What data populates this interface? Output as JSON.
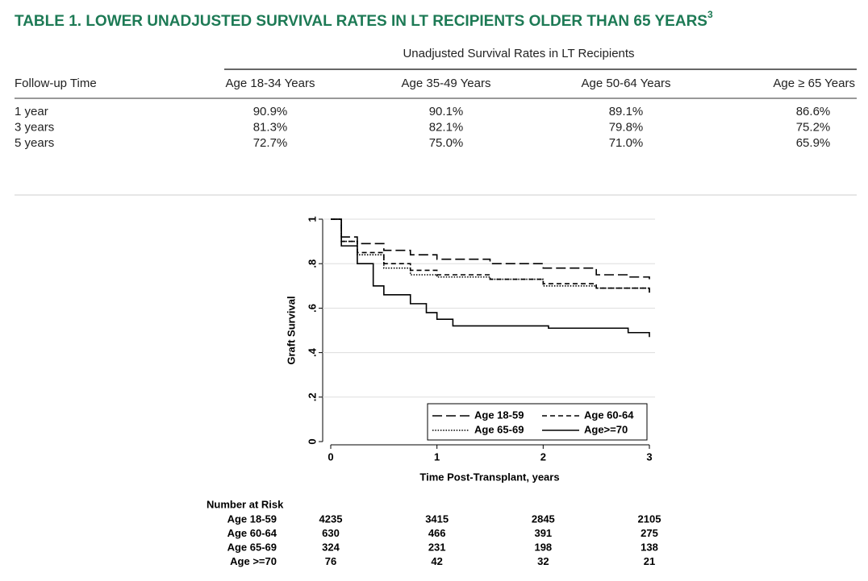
{
  "header": {
    "title": "TABLE 1. LOWER UNADJUSTED SURVIVAL RATES IN LT RECIPIENTS OLDER THAN 65 YEARS",
    "title_superscript": "3",
    "color": "#1d7a55"
  },
  "table": {
    "super_header": "Unadjusted Survival Rates in LT Recipients",
    "columns": [
      "Follow-up Time",
      "Age 18-34 Years",
      "Age 35-49 Years",
      "Age 50-64 Years",
      "Age ≥ 65 Years"
    ],
    "rows": [
      [
        "1 year",
        "90.9%",
        "90.1%",
        "89.1%",
        "86.6%"
      ],
      [
        "3 years",
        "81.3%",
        "82.1%",
        "79.8%",
        "75.2%"
      ],
      [
        "5 years",
        "72.7%",
        "75.0%",
        "71.0%",
        "65.9%"
      ]
    ]
  },
  "chart_data": {
    "type": "step",
    "x_label": "Time Post-Transplant, years",
    "y_label": "Graft Survival",
    "xlim": [
      0,
      3
    ],
    "xticks": [
      0,
      1,
      2,
      3
    ],
    "ylim": [
      0,
      1
    ],
    "yticks": [
      0,
      {
        "value": 0.2,
        "label": ".2"
      },
      {
        "value": 0.4,
        "label": ".4"
      },
      {
        "value": 0.6,
        "label": ".6"
      },
      {
        "value": 0.8,
        "label": ".8"
      },
      1
    ],
    "grid": true,
    "legend": "lower right",
    "series": [
      {
        "name": "Age 18-59",
        "color": "#000000",
        "dash": "long-dash",
        "x": [
          0,
          0.1,
          0.25,
          0.5,
          0.75,
          1,
          1.5,
          2,
          2.5,
          2.8,
          3
        ],
        "values": [
          1,
          0.92,
          0.89,
          0.86,
          0.84,
          0.82,
          0.8,
          0.78,
          0.75,
          0.74,
          0.73
        ]
      },
      {
        "name": "Age 60-64",
        "color": "#000000",
        "dash": "dash",
        "x": [
          0,
          0.1,
          0.25,
          0.5,
          0.75,
          1,
          1.5,
          2,
          2.5,
          3
        ],
        "values": [
          1,
          0.9,
          0.85,
          0.8,
          0.77,
          0.75,
          0.73,
          0.71,
          0.69,
          0.67
        ]
      },
      {
        "name": "Age 65-69",
        "color": "#000000",
        "dash": "dot",
        "x": [
          0,
          0.1,
          0.25,
          0.5,
          0.75,
          1,
          1.5,
          2,
          2.5,
          3
        ],
        "values": [
          1,
          0.9,
          0.84,
          0.78,
          0.75,
          0.74,
          0.73,
          0.7,
          0.69,
          0.67
        ]
      },
      {
        "name": "Age>=70",
        "color": "#000000",
        "dash": "solid",
        "x": [
          0,
          0.1,
          0.25,
          0.4,
          0.5,
          0.75,
          0.9,
          1,
          1.15,
          2,
          2.05,
          2.75,
          2.8,
          3
        ],
        "values": [
          1,
          0.88,
          0.8,
          0.7,
          0.66,
          0.62,
          0.58,
          0.55,
          0.52,
          0.52,
          0.51,
          0.51,
          0.49,
          0.47
        ]
      }
    ],
    "risk_table": {
      "title": "Number at Risk",
      "rows": [
        {
          "label": "Age 18-59",
          "values": [
            4235,
            3415,
            2845,
            2105
          ]
        },
        {
          "label": "Age 60-64",
          "values": [
            630,
            466,
            391,
            275
          ]
        },
        {
          "label": "Age 65-69",
          "values": [
            324,
            231,
            198,
            138
          ]
        },
        {
          "label": "Age >=70",
          "values": [
            76,
            42,
            32,
            21
          ]
        }
      ]
    }
  }
}
